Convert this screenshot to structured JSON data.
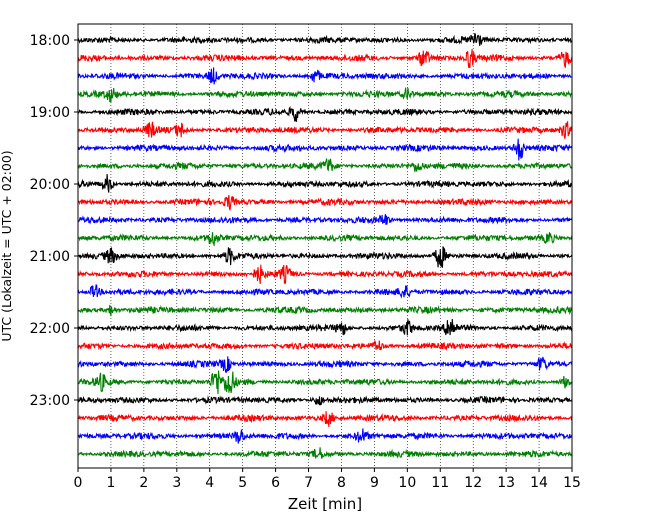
{
  "chart_data": {
    "type": "line",
    "title": "",
    "xlabel": "Zeit  [min]",
    "ylabel": "UTC (Lokalzeit = UTC + 02:00)",
    "xlim": [
      0,
      15
    ],
    "x_ticks": [
      0,
      1,
      2,
      3,
      4,
      5,
      6,
      7,
      8,
      9,
      10,
      11,
      12,
      13,
      14,
      15
    ],
    "x_tick_labels": [
      "0",
      "1",
      "2",
      "3",
      "4",
      "5",
      "6",
      "7",
      "8",
      "9",
      "10",
      "11",
      "12",
      "13",
      "14",
      "15"
    ],
    "y_tick_labels": [
      "18:00",
      "19:00",
      "20:00",
      "21:00",
      "22:00",
      "23:00"
    ],
    "trace_interval_minutes": 15,
    "first_trace_time": "18:00",
    "grid": "vertical dotted lines at each minute",
    "trace_colors": [
      "#000000",
      "#ff0000",
      "#0000ff",
      "#008000"
    ],
    "traces": [
      {
        "start": "18:00",
        "color": "#000000",
        "events": [
          {
            "t": 12.1,
            "a": 2.5
          }
        ]
      },
      {
        "start": "18:15",
        "color": "#ff0000",
        "events": [
          {
            "t": 10.5,
            "a": 2.5
          },
          {
            "t": 11.9,
            "a": 2.5
          },
          {
            "t": 14.8,
            "a": 2.2
          }
        ]
      },
      {
        "start": "18:30",
        "color": "#0000ff",
        "events": [
          {
            "t": 4.1,
            "a": 2.0
          },
          {
            "t": 7.2,
            "a": 1.8
          }
        ]
      },
      {
        "start": "18:45",
        "color": "#008000",
        "events": [
          {
            "t": 1.0,
            "a": 1.8
          },
          {
            "t": 10.0,
            "a": 1.5
          }
        ]
      },
      {
        "start": "19:00",
        "color": "#000000",
        "events": [
          {
            "t": 6.6,
            "a": 2.5
          }
        ]
      },
      {
        "start": "19:15",
        "color": "#ff0000",
        "events": [
          {
            "t": 2.2,
            "a": 2.0
          },
          {
            "t": 3.1,
            "a": 1.8
          },
          {
            "t": 14.8,
            "a": 2.0
          }
        ]
      },
      {
        "start": "19:30",
        "color": "#0000ff",
        "events": [
          {
            "t": 13.4,
            "a": 3.5
          }
        ]
      },
      {
        "start": "19:45",
        "color": "#008000",
        "events": [
          {
            "t": 7.6,
            "a": 1.8
          },
          {
            "t": 10.3,
            "a": 1.5
          }
        ]
      },
      {
        "start": "20:00",
        "color": "#000000",
        "events": [
          {
            "t": 0.9,
            "a": 2.5
          }
        ]
      },
      {
        "start": "20:15",
        "color": "#ff0000",
        "events": [
          {
            "t": 4.6,
            "a": 2.0
          }
        ]
      },
      {
        "start": "20:30",
        "color": "#0000ff",
        "events": [
          {
            "t": 9.3,
            "a": 1.5
          }
        ]
      },
      {
        "start": "20:45",
        "color": "#008000",
        "events": [
          {
            "t": 4.1,
            "a": 1.8
          },
          {
            "t": 14.3,
            "a": 1.5
          }
        ]
      },
      {
        "start": "21:00",
        "color": "#000000",
        "events": [
          {
            "t": 1.0,
            "a": 1.8
          },
          {
            "t": 4.6,
            "a": 2.0
          },
          {
            "t": 11.0,
            "a": 3.5
          }
        ]
      },
      {
        "start": "21:15",
        "color": "#ff0000",
        "events": [
          {
            "t": 5.5,
            "a": 2.2
          },
          {
            "t": 6.3,
            "a": 2.0
          }
        ]
      },
      {
        "start": "21:30",
        "color": "#0000ff",
        "events": [
          {
            "t": 0.5,
            "a": 1.8
          },
          {
            "t": 9.9,
            "a": 1.6
          }
        ]
      },
      {
        "start": "21:45",
        "color": "#008000",
        "events": [
          {
            "t": 1.0,
            "a": 1.5
          }
        ]
      },
      {
        "start": "22:00",
        "color": "#000000",
        "events": [
          {
            "t": 8.0,
            "a": 1.8
          },
          {
            "t": 10.0,
            "a": 2.0
          },
          {
            "t": 11.3,
            "a": 3.5
          }
        ]
      },
      {
        "start": "22:15",
        "color": "#ff0000",
        "events": [
          {
            "t": 9.1,
            "a": 1.5
          }
        ]
      },
      {
        "start": "22:30",
        "color": "#0000ff",
        "events": [
          {
            "t": 4.5,
            "a": 2.0
          },
          {
            "t": 14.1,
            "a": 1.8
          }
        ]
      },
      {
        "start": "22:45",
        "color": "#008000",
        "events": [
          {
            "t": 0.7,
            "a": 2.0
          },
          {
            "t": 4.2,
            "a": 4.0
          },
          {
            "t": 4.6,
            "a": 4.0
          },
          {
            "t": 14.8,
            "a": 1.5
          }
        ]
      },
      {
        "start": "23:00",
        "color": "#000000",
        "events": [
          {
            "t": 7.3,
            "a": 1.5
          }
        ]
      },
      {
        "start": "23:15",
        "color": "#ff0000",
        "events": [
          {
            "t": 7.6,
            "a": 2.0
          }
        ]
      },
      {
        "start": "23:30",
        "color": "#0000ff",
        "events": [
          {
            "t": 4.9,
            "a": 2.0
          },
          {
            "t": 8.6,
            "a": 1.8
          }
        ]
      },
      {
        "start": "23:45",
        "color": "#008000",
        "events": [
          {
            "t": 7.3,
            "a": 1.5
          }
        ]
      }
    ]
  }
}
